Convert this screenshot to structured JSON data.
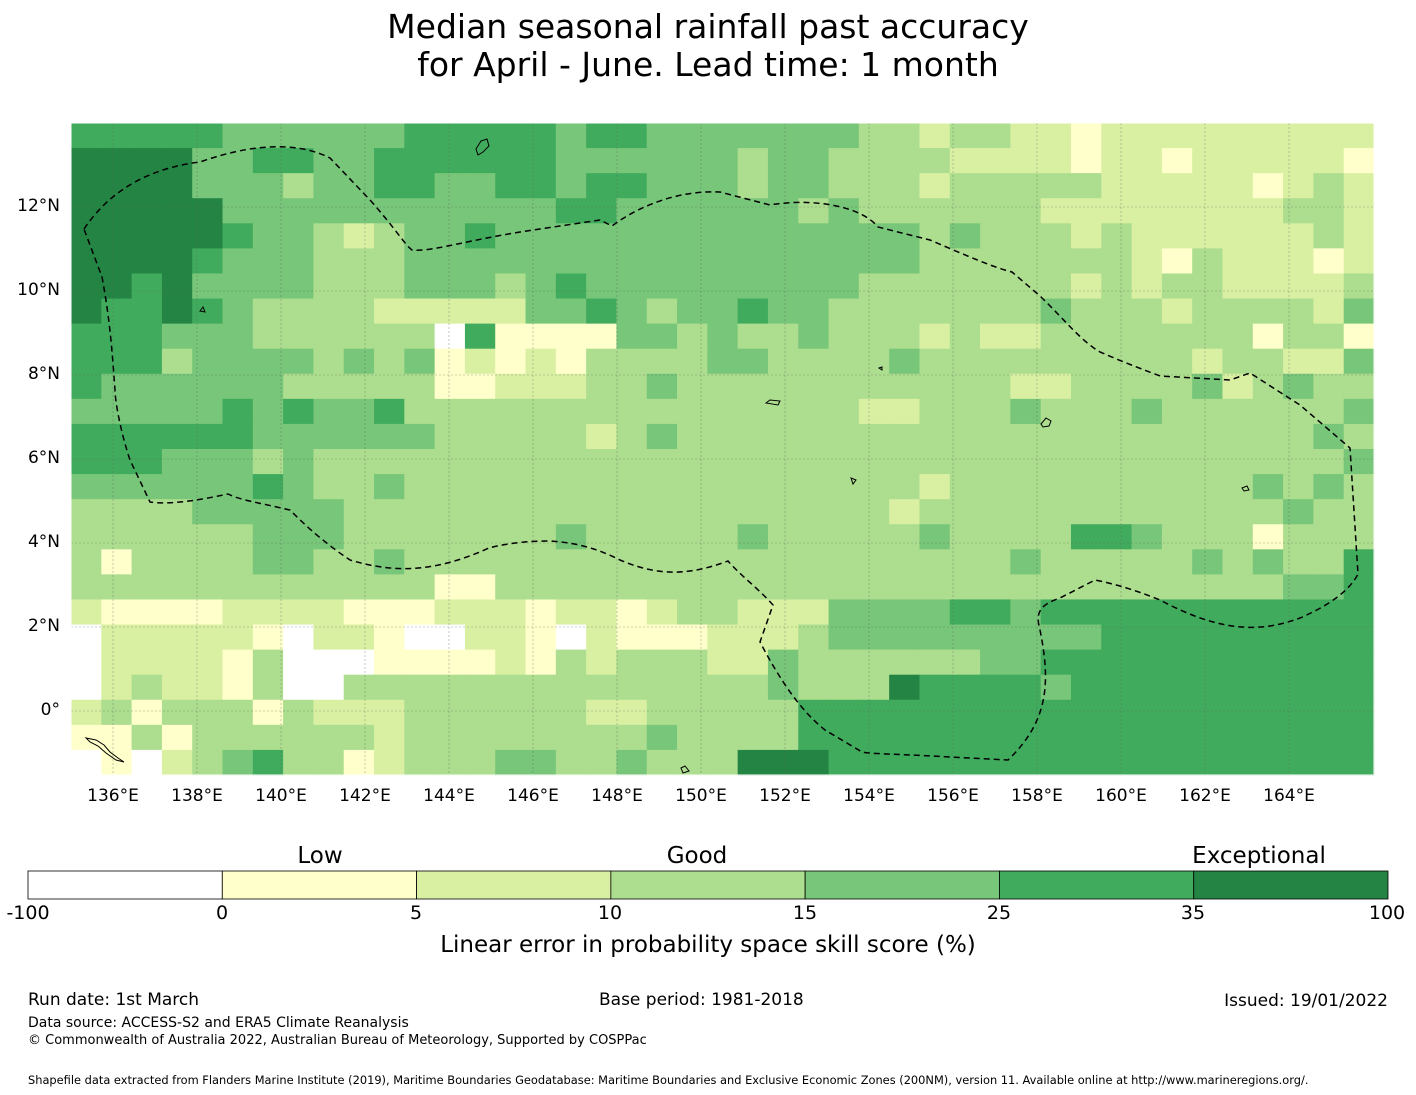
{
  "title": {
    "line1": "Median seasonal rainfall past accuracy",
    "line2": "for April - June. Lead time: 1 month"
  },
  "map": {
    "lat_ticks": [
      "12°N",
      "10°N",
      "8°N",
      "6°N",
      "4°N",
      "2°N",
      "0°"
    ],
    "lon_ticks": [
      "136°E",
      "138°E",
      "140°E",
      "142°E",
      "144°E",
      "146°E",
      "148°E",
      "150°E",
      "152°E",
      "154°E",
      "156°E",
      "158°E",
      "160°E",
      "162°E",
      "164°E"
    ],
    "skill_grid_category_index": [
      "5555544444455555455444444433233221222222222",
      "6666445544555555444444344333322221221222221",
      "6666444344554455455444344333233333222221232",
      "6666644444444444554444443433333322222222332",
      "6666654432344544444444444444343332322222232",
      "6666544433344444444444444444333333321322212",
      "6656444433344434544444444433333332323322223",
      "6556543333222224454344544333333343332333324",
      "5554443333330511114434334333232233333331331",
      "5553444434341212133334433334333333333233224",
      "5444444333331122233433333333333223333423433",
      "4444454544533333333333333322333433343333334",
      "5555554444443333323433333333333333333333343",
      "5554443433333333333333333333333333333333334",
      "4444445433433333333333333333233333333334343",
      "3333444443333333333333333332333333333333433",
      "3333334443333333433333433333433335543331333",
      "3133334433433333333333333333333433333434335",
      "3333333333331133333333333333333333333333445",
      "2111122221112221221233222444455455555555555",
      "0222221022100221021112223444444444555555555",
      "0222213000111121323332243333334455555555555",
      "0232213003333333333333343336555545555555555",
      "2313331322233333322333335555555555555555555",
      "1131333333233333333433335555555555555555555",
      "0102345331233344334333666555555555555555555"
    ]
  },
  "colorbar": {
    "category_labels": [
      "Low",
      "Good",
      "Exceptional"
    ],
    "ticks": [
      "-100",
      "0",
      "5",
      "10",
      "15",
      "25",
      "35",
      "100"
    ],
    "colors": [
      "#ffffff",
      "#ffffcc",
      "#d9f0a3",
      "#addd8e",
      "#78c679",
      "#41ab5d",
      "#238443"
    ],
    "title": "Linear error in probability space skill score (%)"
  },
  "footer": {
    "run_date": "Run date: 1st March",
    "base_period": "Base period: 1981-2018",
    "issued": "Issued: 19/01/2022",
    "data_source": "Data source: ACCESS-S2 and ERA5 Climate Reanalysis",
    "copyright": "© Commonwealth of Australia 2022, Australian Bureau of Meteorology, Supported by COSPPac",
    "shapefile": "Shapefile data extracted from Flanders Marine Institute (2019), Maritime Boundaries Geodatabase: Maritime Boundaries and Exclusive Economic Zones (200NM), version 11. Available online at http://www.marineregions.org/."
  }
}
